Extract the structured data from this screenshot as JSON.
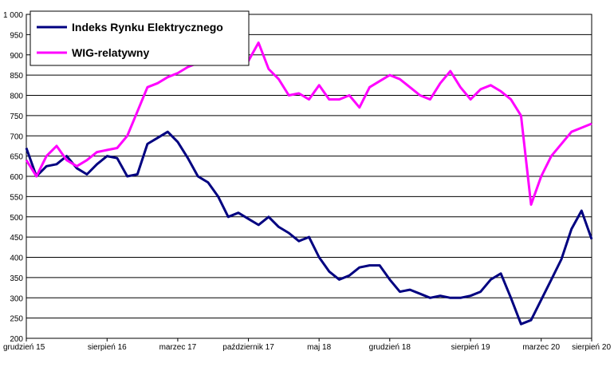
{
  "chart_data": {
    "type": "line",
    "title": "",
    "xlabel": "",
    "ylabel": "",
    "ylim": [
      200,
      1000
    ],
    "yticks": [
      200,
      250,
      300,
      350,
      400,
      450,
      500,
      550,
      600,
      650,
      700,
      750,
      800,
      850,
      900,
      950,
      1000
    ],
    "ytick_labels": [
      "200",
      "250",
      "300",
      "350",
      "400",
      "450",
      "500",
      "550",
      "600",
      "650",
      "700",
      "750",
      "800",
      "850",
      "900",
      "950",
      "1 000"
    ],
    "xlim": [
      "2015-12",
      "2020-08"
    ],
    "xtick_labels": [
      "grudzień 15",
      "sierpień 16",
      "marzec 17",
      "październik 17",
      "maj 18",
      "grudzień 18",
      "sierpień 19",
      "marzec 20",
      "sierpień 20"
    ],
    "xtick_dates": [
      "2015-12",
      "2016-08",
      "2017-03",
      "2017-10",
      "2018-05",
      "2018-12",
      "2019-08",
      "2020-03",
      "2020-08"
    ],
    "grid": true,
    "legend_position": "top-left",
    "series": [
      {
        "name": "Indeks Rynku Elektrycznego",
        "color": "#000080",
        "x": [
          "2015-12",
          "2016-01",
          "2016-02",
          "2016-03",
          "2016-04",
          "2016-05",
          "2016-06",
          "2016-07",
          "2016-08",
          "2016-09",
          "2016-10",
          "2016-11",
          "2016-12",
          "2017-01",
          "2017-02",
          "2017-03",
          "2017-04",
          "2017-05",
          "2017-06",
          "2017-07",
          "2017-08",
          "2017-09",
          "2017-10",
          "2017-11",
          "2017-12",
          "2018-01",
          "2018-02",
          "2018-03",
          "2018-04",
          "2018-05",
          "2018-06",
          "2018-07",
          "2018-08",
          "2018-09",
          "2018-10",
          "2018-11",
          "2018-12",
          "2019-01",
          "2019-02",
          "2019-03",
          "2019-04",
          "2019-05",
          "2019-06",
          "2019-07",
          "2019-08",
          "2019-09",
          "2019-10",
          "2019-11",
          "2019-12",
          "2020-01",
          "2020-02",
          "2020-03",
          "2020-04",
          "2020-05",
          "2020-06",
          "2020-07",
          "2020-08"
        ],
        "values": [
          670,
          600,
          625,
          630,
          650,
          620,
          605,
          630,
          650,
          645,
          600,
          605,
          680,
          695,
          710,
          685,
          645,
          600,
          585,
          550,
          500,
          510,
          495,
          480,
          500,
          475,
          460,
          440,
          450,
          400,
          365,
          345,
          355,
          375,
          380,
          380,
          345,
          315,
          320,
          310,
          300,
          305,
          300,
          300,
          305,
          315,
          345,
          360,
          300,
          235,
          245,
          295,
          345,
          395,
          470,
          515,
          445
        ]
      },
      {
        "name": "WIG-relatywny",
        "color": "#ff00ff",
        "x": [
          "2015-12",
          "2016-01",
          "2016-02",
          "2016-03",
          "2016-04",
          "2016-05",
          "2016-06",
          "2016-07",
          "2016-08",
          "2016-09",
          "2016-10",
          "2016-11",
          "2016-12",
          "2017-01",
          "2017-02",
          "2017-03",
          "2017-04",
          "2017-05",
          "2017-06",
          "2017-07",
          "2017-08",
          "2017-09",
          "2017-10",
          "2017-11",
          "2017-12",
          "2018-01",
          "2018-02",
          "2018-03",
          "2018-04",
          "2018-05",
          "2018-06",
          "2018-07",
          "2018-08",
          "2018-09",
          "2018-10",
          "2018-11",
          "2018-12",
          "2019-01",
          "2019-02",
          "2019-03",
          "2019-04",
          "2019-05",
          "2019-06",
          "2019-07",
          "2019-08",
          "2019-09",
          "2019-10",
          "2019-11",
          "2019-12",
          "2020-01",
          "2020-02",
          "2020-03",
          "2020-04",
          "2020-05",
          "2020-06",
          "2020-07",
          "2020-08"
        ],
        "values": [
          640,
          600,
          650,
          675,
          640,
          625,
          640,
          660,
          665,
          670,
          700,
          760,
          820,
          830,
          845,
          855,
          870,
          880,
          890,
          895,
          890,
          880,
          885,
          930,
          865,
          840,
          800,
          805,
          790,
          825,
          790,
          790,
          800,
          770,
          820,
          835,
          850,
          840,
          820,
          800,
          790,
          830,
          860,
          820,
          790,
          815,
          825,
          810,
          790,
          750,
          530,
          600,
          650,
          680,
          710,
          720,
          730
        ]
      }
    ]
  }
}
